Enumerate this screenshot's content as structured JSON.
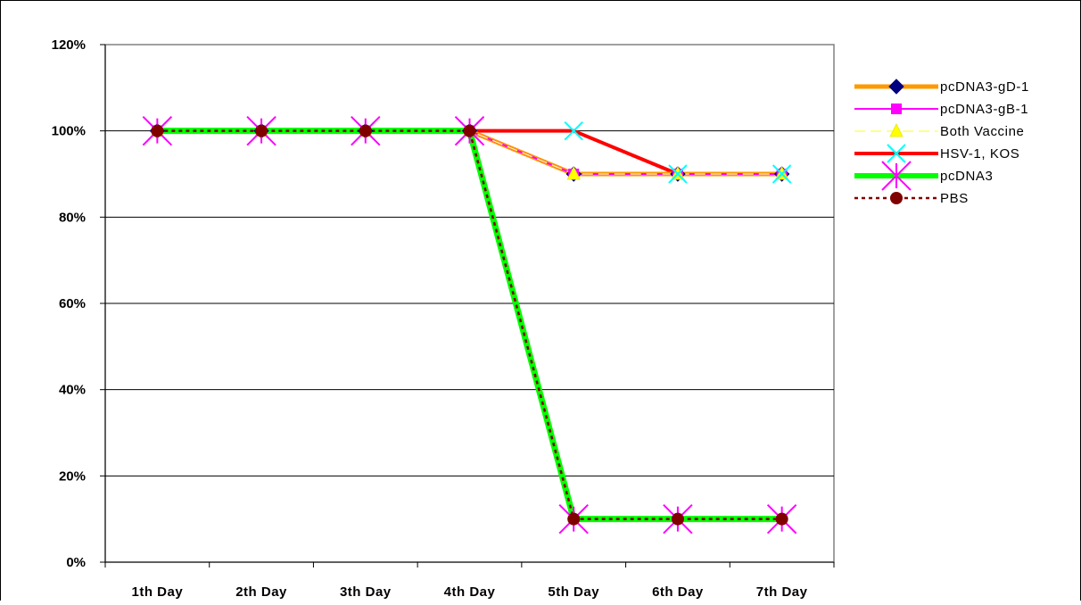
{
  "chart_data": {
    "type": "line",
    "title": "",
    "xlabel": "",
    "ylabel": "",
    "categories": [
      "1th Day",
      "2th Day",
      "3th Day",
      "4th Day",
      "5th Day",
      "6th Day",
      "7th Day"
    ],
    "ylim": [
      0,
      120
    ],
    "yticks": [
      "0%",
      "20%",
      "40%",
      "60%",
      "80%",
      "100%",
      "120%"
    ],
    "grid": true,
    "legend_position": "right",
    "series": [
      {
        "name": "pcDNA3-gD-1",
        "values": [
          100,
          100,
          100,
          100,
          90,
          90,
          90
        ],
        "color": "#ff9900",
        "marker": "diamond",
        "marker_color": "#000080",
        "dash": "solid"
      },
      {
        "name": "pcDNA3-gB-1",
        "values": [
          100,
          100,
          100,
          100,
          90,
          90,
          90
        ],
        "color": "#ff00ff",
        "marker": "square",
        "marker_color": "#ff00ff",
        "dash": "solid"
      },
      {
        "name": "Both Vaccine",
        "values": [
          100,
          100,
          100,
          100,
          90,
          90,
          90
        ],
        "color": "#ffff66",
        "marker": "triangle",
        "marker_color": "#ffff00",
        "dash": "dashed"
      },
      {
        "name": "HSV-1, KOS",
        "values": [
          100,
          100,
          100,
          100,
          100,
          90,
          90
        ],
        "color": "#ff0000",
        "marker": "x",
        "marker_color": "#00ffff",
        "dash": "solid"
      },
      {
        "name": "pcDNA3",
        "values": [
          100,
          100,
          100,
          100,
          10,
          10,
          10
        ],
        "color": "#00ff00",
        "marker": "star",
        "marker_color": "#ff00ff",
        "dash": "solid"
      },
      {
        "name": "PBS",
        "values": [
          100,
          100,
          100,
          100,
          10,
          10,
          10
        ],
        "color": "#800000",
        "marker": "circle",
        "marker_color": "#800000",
        "dash": "dotted"
      }
    ]
  }
}
